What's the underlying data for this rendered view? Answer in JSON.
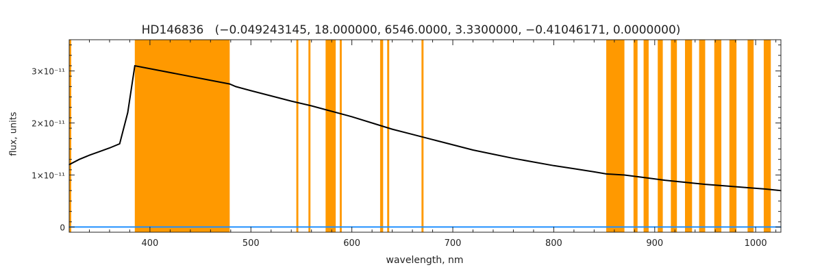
{
  "chart_data": {
    "type": "line",
    "title": "HD146836   (−0.049243145, 18.000000, 6546.0000, 3.3300000, −0.41046171, 0.0000000)",
    "xlabel": "wavelength, nm",
    "ylabel": "flux, units",
    "xlim": [
      320,
      1025
    ],
    "ylim": [
      -1e-12,
      3.6e-11
    ],
    "x_ticks": [
      400,
      500,
      600,
      700,
      800,
      900,
      1000
    ],
    "x_tick_labels": [
      "400",
      "500",
      "600",
      "700",
      "800",
      "900",
      "1000"
    ],
    "y_ticks": [
      0,
      1e-11,
      2e-11,
      3e-11
    ],
    "y_tick_labels": [
      "0",
      "1×10⁻¹¹",
      "2×10⁻¹¹",
      "3×10⁻¹¹"
    ],
    "masked_regions": [
      [
        320,
        322
      ],
      [
        385,
        479
      ],
      [
        545,
        547
      ],
      [
        557,
        559
      ],
      [
        574,
        584
      ],
      [
        588,
        590
      ],
      [
        628,
        631
      ],
      [
        635,
        637
      ],
      [
        669,
        671
      ],
      [
        852,
        870
      ],
      [
        879,
        883
      ],
      [
        889,
        894
      ],
      [
        903,
        908
      ],
      [
        916,
        922
      ],
      [
        930,
        937
      ],
      [
        944,
        950
      ],
      [
        959,
        966
      ],
      [
        974,
        981
      ],
      [
        992,
        998
      ],
      [
        1008,
        1015
      ]
    ],
    "series": [
      {
        "color": "#000000",
        "x": [
          320,
          330,
          340,
          350,
          360,
          370,
          378,
          385,
          479,
          485,
          500,
          520,
          540,
          560,
          575,
          600,
          620,
          640,
          660,
          680,
          700,
          720,
          740,
          760,
          780,
          800,
          820,
          840,
          852,
          870,
          890,
          910,
          930,
          950,
          970,
          990,
          1010,
          1025
        ],
        "y": [
          1.2e-11,
          1.3e-11,
          1.38e-11,
          1.45e-11,
          1.52e-11,
          1.6e-11,
          2.2e-11,
          3.1e-11,
          2.75e-11,
          2.7e-11,
          2.62e-11,
          2.52e-11,
          2.42e-11,
          2.33e-11,
          2.25e-11,
          2.12e-11,
          2e-11,
          1.88e-11,
          1.78e-11,
          1.68e-11,
          1.58e-11,
          1.48e-11,
          1.4e-11,
          1.32e-11,
          1.25e-11,
          1.18e-11,
          1.12e-11,
          1.06e-11,
          1.02e-11,
          1e-11,
          9.5e-12,
          9e-12,
          8.6e-12,
          8.2e-12,
          7.9e-12,
          7.6e-12,
          7.3e-12,
          7e-12
        ]
      },
      {
        "color": "#1f8fff",
        "x": [
          320,
          1025
        ],
        "y": [
          0.0,
          0.0
        ]
      }
    ],
    "mask_color": "#ff9900"
  }
}
